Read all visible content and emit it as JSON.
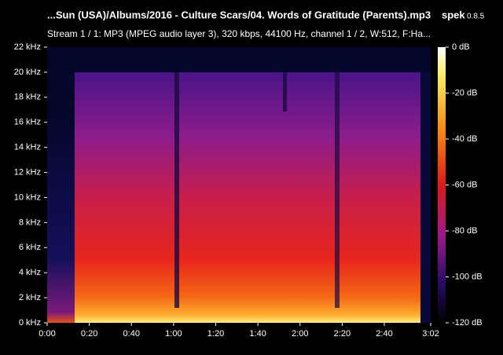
{
  "chart_data": {
    "type": "spectrogram",
    "title": "...Sun (USA)/Albums/2016 - Culture Scars/04. Words of Gratitude (Parents).mp3",
    "app_name": "spek",
    "app_version": "0.8.5",
    "subtitle": "Stream 1 / 1: MP3 (MPEG audio layer 3), 320 kbps, 44100 Hz, channel 1 / 2, W:512, F:Ha...",
    "xlim": [
      0,
      182
    ],
    "xticks": [
      {
        "value": 0,
        "label": "0:00"
      },
      {
        "value": 20,
        "label": "0:20"
      },
      {
        "value": 40,
        "label": "0:40"
      },
      {
        "value": 60,
        "label": "1:00"
      },
      {
        "value": 80,
        "label": "1:20"
      },
      {
        "value": 100,
        "label": "1:40"
      },
      {
        "value": 120,
        "label": "2:00"
      },
      {
        "value": 140,
        "label": "2:20"
      },
      {
        "value": 160,
        "label": "2:40"
      },
      {
        "value": 182,
        "label": "3:02"
      }
    ],
    "ylim": [
      0,
      22
    ],
    "yticks": [
      {
        "value": 0,
        "label": "0 kHz"
      },
      {
        "value": 2,
        "label": "2 kHz"
      },
      {
        "value": 4,
        "label": "4 kHz"
      },
      {
        "value": 6,
        "label": "6 kHz"
      },
      {
        "value": 8,
        "label": "8 kHz"
      },
      {
        "value": 10,
        "label": "10 kHz"
      },
      {
        "value": 12,
        "label": "12 kHz"
      },
      {
        "value": 14,
        "label": "14 kHz"
      },
      {
        "value": 16,
        "label": "16 kHz"
      },
      {
        "value": 18,
        "label": "18 kHz"
      },
      {
        "value": 20,
        "label": "20 kHz"
      },
      {
        "value": 22,
        "label": "22 kHz"
      }
    ],
    "zlim": [
      -120,
      0
    ],
    "zticks": [
      {
        "value": 0,
        "label": "0 dB"
      },
      {
        "value": -20,
        "label": "-20 dB"
      },
      {
        "value": -40,
        "label": "-40 dB"
      },
      {
        "value": -60,
        "label": "-60 dB"
      },
      {
        "value": -80,
        "label": "-80 dB"
      },
      {
        "value": -100,
        "label": "-100 dB"
      },
      {
        "value": -120,
        "label": "-120 dB"
      }
    ]
  }
}
